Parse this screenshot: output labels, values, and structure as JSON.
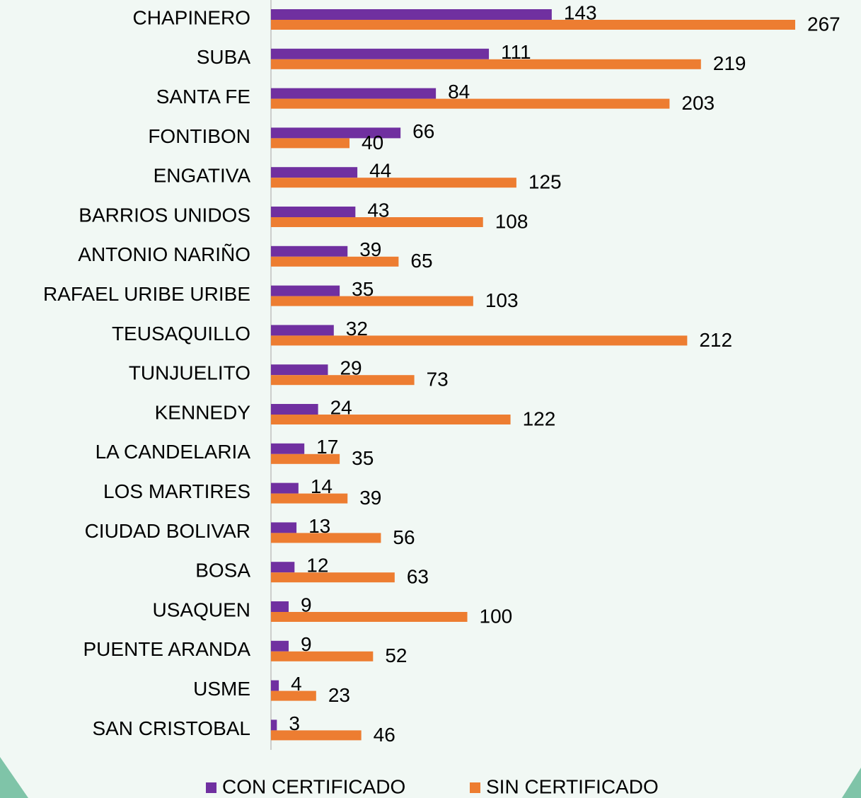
{
  "chart_data": {
    "type": "hbar",
    "categories": [
      "CHAPINERO",
      "SUBA",
      "SANTA FE",
      "FONTIBON",
      "ENGATIVA",
      "BARRIOS UNIDOS",
      "ANTONIO NARIÑO",
      "RAFAEL URIBE URIBE",
      "TEUSAQUILLO",
      "TUNJUELITO",
      "KENNEDY",
      "LA CANDELARIA",
      "LOS MARTIRES",
      "CIUDAD BOLIVAR",
      "BOSA",
      "USAQUEN",
      "PUENTE ARANDA",
      "USME",
      "SAN CRISTOBAL"
    ],
    "series": [
      {
        "name": "CON CERTIFICADO",
        "color": "#7030a0",
        "values": [
          143,
          111,
          84,
          66,
          44,
          43,
          39,
          35,
          32,
          29,
          24,
          17,
          14,
          13,
          12,
          9,
          9,
          4,
          3
        ]
      },
      {
        "name": "SIN CERTIFICADO",
        "color": "#ed7d31",
        "values": [
          267,
          219,
          203,
          40,
          125,
          108,
          65,
          103,
          212,
          73,
          122,
          35,
          39,
          56,
          63,
          100,
          52,
          23,
          46
        ]
      }
    ],
    "legend": "bottom"
  }
}
